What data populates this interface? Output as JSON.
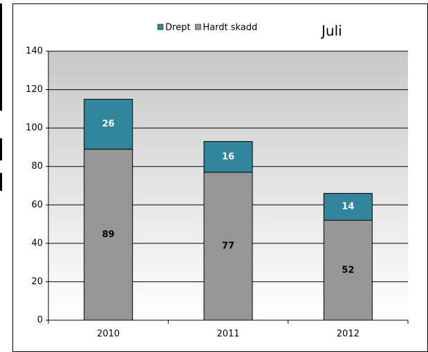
{
  "chart_data": {
    "type": "stacked_bar",
    "annotation": "Juli",
    "categories": [
      "2010",
      "2011",
      "2012"
    ],
    "series": [
      {
        "name": "Drept",
        "color": "#31859c",
        "values": [
          26,
          16,
          14
        ]
      },
      {
        "name": "Hardt skadd",
        "color": "#969696",
        "values": [
          89,
          77,
          52
        ]
      }
    ],
    "ylim": [
      0,
      140
    ],
    "yticks": [
      0,
      20,
      40,
      60,
      80,
      100,
      120,
      140
    ],
    "grid": true,
    "legend": "top"
  }
}
